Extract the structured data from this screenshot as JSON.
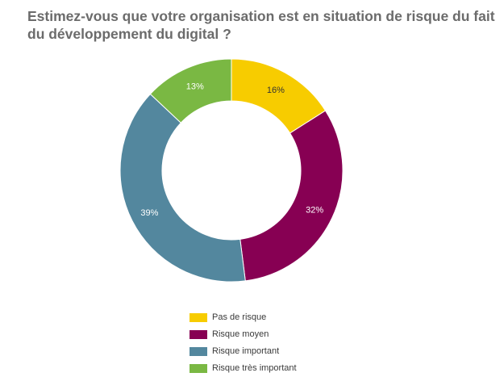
{
  "chart_data": {
    "type": "pie",
    "variant": "donut",
    "title": "Estimez-vous que votre organisation est en situation de risque du fait du développement du digital ?",
    "categories": [
      "Pas de risque",
      "Risque moyen",
      "Risque important",
      "Risque très important"
    ],
    "values": [
      16,
      32,
      39,
      13
    ],
    "labels": [
      "16%",
      "32%",
      "39%",
      "13%"
    ],
    "colors": [
      "#f7cc00",
      "#870053",
      "#53879e",
      "#7ab843"
    ],
    "label_colors": [
      "#333333",
      "#ffffff",
      "#ffffff",
      "#ffffff"
    ],
    "legend_position": "bottom"
  }
}
